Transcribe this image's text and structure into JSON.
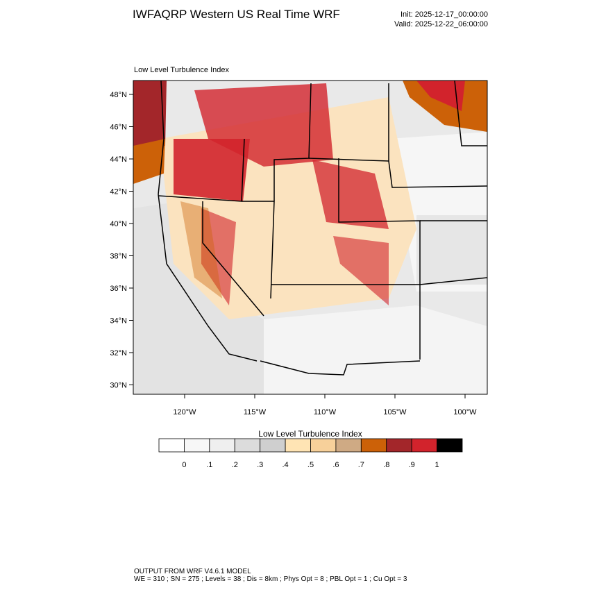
{
  "header": {
    "title": "IWFAQRP Western US Real Time WRF",
    "init": "Init: 2025-12-17_00:00:00",
    "valid": "Valid: 2025-12-22_06:00:00"
  },
  "map": {
    "subtitle": "Low Level Turbulence Index",
    "lat_labels": [
      "48°N",
      "46°N",
      "44°N",
      "42°N",
      "40°N",
      "38°N",
      "36°N",
      "34°N",
      "32°N",
      "30°N"
    ],
    "lon_labels": [
      "120°W",
      "115°W",
      "110°W",
      "105°W",
      "100°W"
    ]
  },
  "colorbar": {
    "title": "Low Level Turbulence Index",
    "labels": [
      "0",
      ".1",
      ".2",
      ".3",
      ".4",
      ".5",
      ".6",
      ".7",
      ".8",
      ".9",
      "1"
    ],
    "colors": [
      "#ffffff",
      "#f7f7f7",
      "#efefef",
      "#dcdcdc",
      "#cfcfcf",
      "#ffe4b4",
      "#f7d09a",
      "#cfaa84",
      "#cc6108",
      "#a3262a",
      "#d2232c",
      "#000000"
    ]
  },
  "footer": {
    "line1": "OUTPUT FROM WRF V4.6.1 MODEL",
    "line2": "WE = 310 ; SN = 275 ; Levels = 38 ; Dis = 8km ; Phys Opt = 8 ; PBL Opt = 1 ; Cu Opt = 3"
  }
}
